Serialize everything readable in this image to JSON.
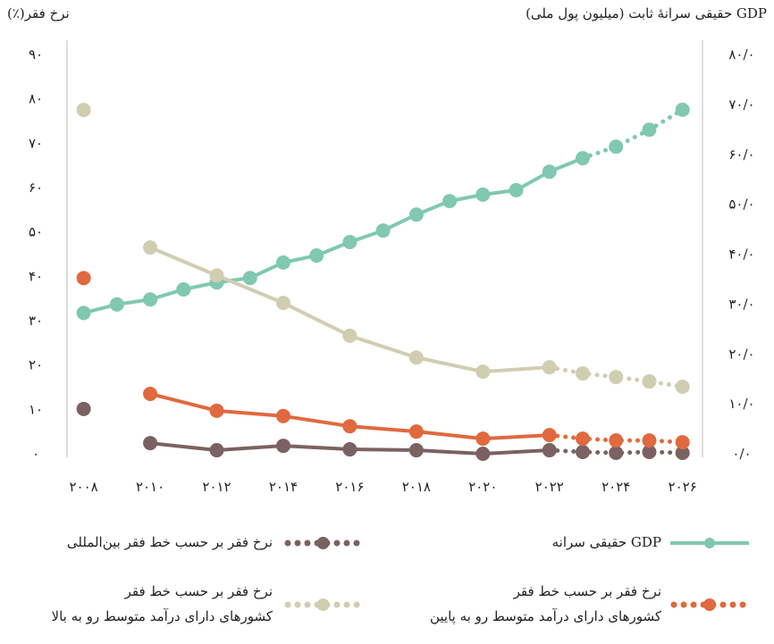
{
  "chart_data": {
    "type": "line",
    "title_left": "نرخ فقر(٪)",
    "title_right": "GDP حقیقی سرانهٔ ثابت (میلیون پول ملی)",
    "xlim": [
      2007.5,
      2026.6
    ],
    "xticks": [
      {
        "value": 2008,
        "label": "۲۰۰۸"
      },
      {
        "value": 2010,
        "label": "۲۰۱۰"
      },
      {
        "value": 2012,
        "label": "۲۰۱۲"
      },
      {
        "value": 2014,
        "label": "۲۰۱۴"
      },
      {
        "value": 2016,
        "label": "۲۰۱۶"
      },
      {
        "value": 2018,
        "label": "۲۰۱۸"
      },
      {
        "value": 2020,
        "label": "۲۰۲۰"
      },
      {
        "value": 2022,
        "label": "۲۰۲۲"
      },
      {
        "value": 2024,
        "label": "۲۰۲۴"
      },
      {
        "value": 2026,
        "label": "۲۰۲۶"
      }
    ],
    "ylim": [
      0,
      90
    ],
    "yticks": [
      {
        "value": 0,
        "label": "۰"
      },
      {
        "value": 10,
        "label": "۱۰"
      },
      {
        "value": 20,
        "label": "۲۰"
      },
      {
        "value": 30,
        "label": "۳۰"
      },
      {
        "value": 40,
        "label": "۴۰"
      },
      {
        "value": 50,
        "label": "۵۰"
      },
      {
        "value": 60,
        "label": "۶۰"
      },
      {
        "value": 70,
        "label": "۷۰"
      },
      {
        "value": 80,
        "label": "۸۰"
      },
      {
        "value": 90,
        "label": "۹۰"
      }
    ],
    "y2lim": [
      0,
      80
    ],
    "y2ticks": [
      {
        "value": 0,
        "label": "۰/۰"
      },
      {
        "value": 10,
        "label": "۱۰/۰"
      },
      {
        "value": 20,
        "label": "۲۰/۰"
      },
      {
        "value": 30,
        "label": "۳۰/۰"
      },
      {
        "value": 40,
        "label": "۴۰/۰"
      },
      {
        "value": 50,
        "label": "۵۰/۰"
      },
      {
        "value": 60,
        "label": "۶۰/۰"
      },
      {
        "value": 70,
        "label": "۷۰/۰"
      },
      {
        "value": 80,
        "label": "۸۰/۰"
      }
    ],
    "series": [
      {
        "name": [
          "GDP حقیقی سرانه"
        ],
        "color": "#80c8b1",
        "axis": "y2",
        "projection_start": 2023,
        "x": [
          2008,
          2009,
          2010,
          2011,
          2012,
          2013,
          2014,
          2015,
          2016,
          2017,
          2018,
          2019,
          2020,
          2021,
          2022,
          2023,
          2024,
          2025,
          2026
        ],
        "values": [
          28.4,
          30.1,
          31.1,
          33.1,
          34.5,
          35.4,
          38.5,
          39.9,
          42.6,
          44.9,
          48.1,
          50.8,
          52.1,
          53.0,
          56.7,
          59.4,
          61.7,
          65.1,
          69.1
        ]
      },
      {
        "name": [
          "نرخ فقر بر حسب خط فقر بین‌المللی"
        ],
        "color": "#7b6161",
        "axis": "y",
        "projection_start": 2022,
        "x": [
          2008,
          2009,
          2010,
          2012,
          2014,
          2016,
          2018,
          2020,
          2022,
          2023,
          2024,
          2025,
          2026
        ],
        "values": [
          10.3,
          null,
          2.6,
          1.0,
          2.0,
          1.2,
          1.0,
          0.2,
          1.0,
          0.6,
          0.4,
          0.6,
          0.4
        ]
      },
      {
        "name": [
          "نرخ فقر بر حسب خط فقر",
          "کشورهای دارای درآمد متوسط رو به پایین"
        ],
        "color": "#e0693f",
        "axis": "y",
        "projection_start": 2022,
        "x": [
          2008,
          2009,
          2010,
          2012,
          2014,
          2016,
          2018,
          2020,
          2022,
          2023,
          2024,
          2025,
          2026
        ],
        "values": [
          39.8,
          null,
          13.7,
          9.9,
          8.7,
          6.4,
          5.2,
          3.6,
          4.4,
          3.6,
          3.2,
          3.2,
          2.8
        ]
      },
      {
        "name": [
          "نرخ فقر بر حسب خط فقر",
          "کشورهای دارای درآمد متوسط رو به بالا"
        ],
        "color": "#d0cdb1",
        "axis": "y",
        "projection_start": 2022,
        "x": [
          2008,
          2009,
          2010,
          2012,
          2014,
          2016,
          2018,
          2020,
          2022,
          2023,
          2024,
          2025,
          2026
        ],
        "values": [
          77.7,
          null,
          46.7,
          40.4,
          34.2,
          26.8,
          21.9,
          18.7,
          19.7,
          18.3,
          17.5,
          16.5,
          15.3
        ]
      }
    ]
  }
}
